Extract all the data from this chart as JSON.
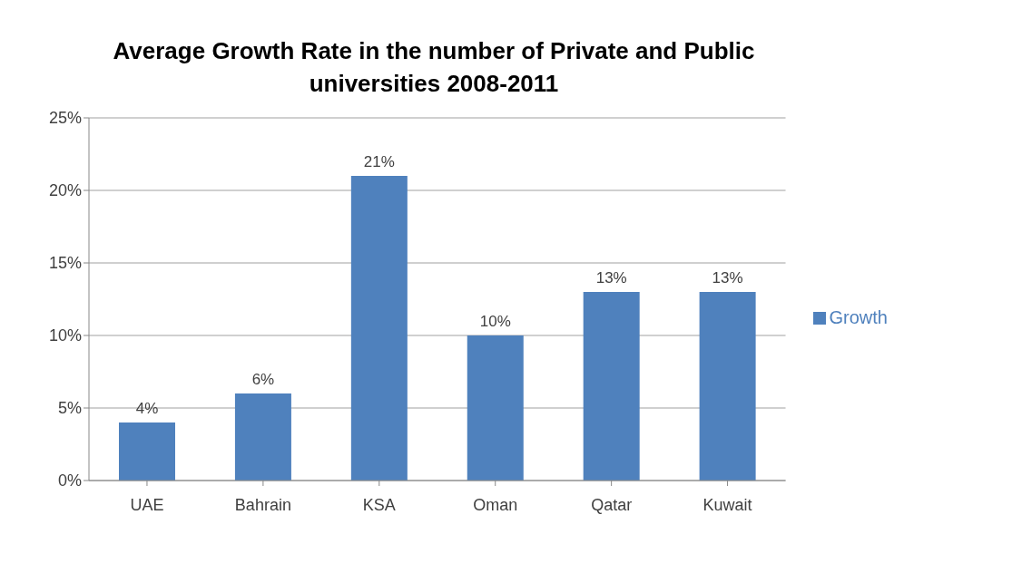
{
  "chart_data": {
    "type": "bar",
    "title": "Average Growth Rate in the number of Private and Public universities 2008-2011",
    "categories": [
      "UAE",
      "Bahrain",
      "KSA",
      "Oman",
      "Qatar",
      "Kuwait"
    ],
    "series": [
      {
        "name": "Growth",
        "color": "#4f81bd",
        "values": [
          4,
          6,
          21,
          10,
          13,
          13
        ],
        "value_labels": [
          "4%",
          "6%",
          "21%",
          "10%",
          "13%",
          "13%"
        ]
      }
    ],
    "ylim": [
      0,
      25
    ],
    "yticks": [
      {
        "value": 0,
        "label": "0%"
      },
      {
        "value": 5,
        "label": "5%"
      },
      {
        "value": 10,
        "label": "10%"
      },
      {
        "value": 15,
        "label": "15%"
      },
      {
        "value": 20,
        "label": "20%"
      },
      {
        "value": 25,
        "label": "25%"
      }
    ],
    "grid": "y",
    "legend": "right"
  }
}
